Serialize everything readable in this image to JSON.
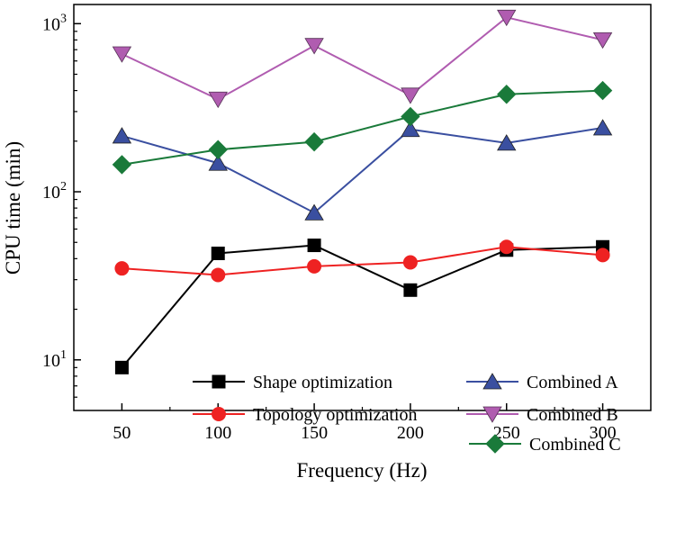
{
  "chart_data": {
    "type": "line",
    "title": "",
    "xlabel": "Frequency (Hz)",
    "ylabel": "CPU time (min)",
    "x": [
      50,
      100,
      150,
      200,
      250,
      300
    ],
    "xlim": [
      25,
      325
    ],
    "ylim": [
      5,
      1300
    ],
    "yscale": "log",
    "x_tick_labels": [
      "50",
      "100",
      "150",
      "200",
      "250",
      "300"
    ],
    "y_ticks": [
      {
        "value": 10,
        "base": "10",
        "exp": "1"
      },
      {
        "value": 100,
        "base": "10",
        "exp": "2"
      },
      {
        "value": 1000,
        "base": "10",
        "exp": "3"
      }
    ],
    "series": [
      {
        "name": "Shape optimization",
        "color": "#000000",
        "marker": "square",
        "values": [
          9,
          43,
          48,
          26,
          45,
          47
        ]
      },
      {
        "name": "Topology optimization",
        "color": "#ee2222",
        "marker": "circle",
        "values": [
          35,
          32,
          36,
          38,
          47,
          42
        ]
      },
      {
        "name": "Combined A",
        "color": "#3a4fa0",
        "marker": "triangle-up",
        "values": [
          215,
          148,
          75,
          235,
          195,
          240
        ]
      },
      {
        "name": "Combined B",
        "color": "#b05cb0",
        "marker": "triangle-down",
        "values": [
          660,
          355,
          740,
          375,
          1090,
          800
        ]
      },
      {
        "name": "Combined C",
        "color": "#1a7a3a",
        "marker": "diamond",
        "values": [
          145,
          178,
          198,
          280,
          380,
          400
        ]
      }
    ]
  }
}
